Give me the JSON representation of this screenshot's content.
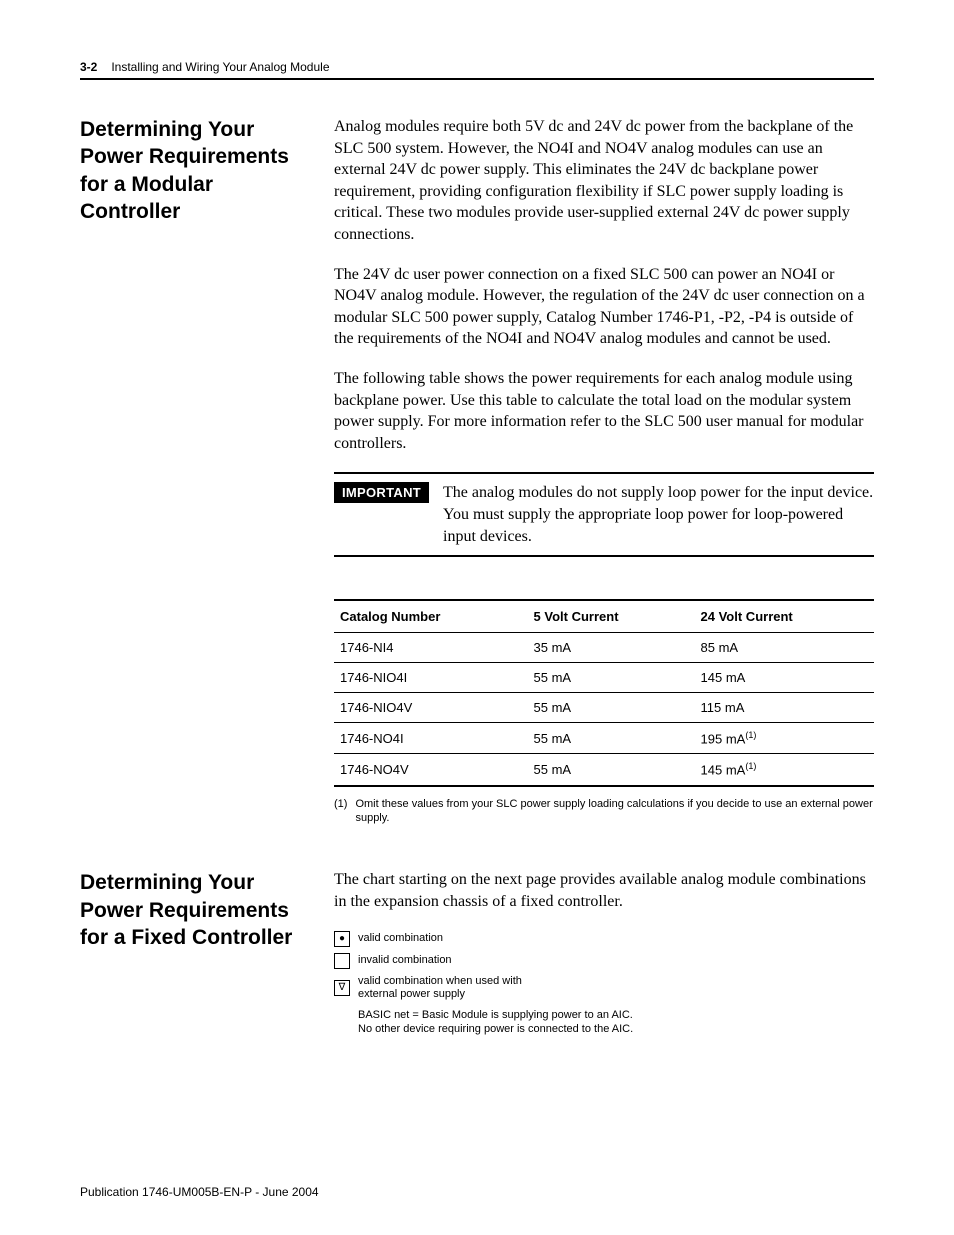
{
  "header": {
    "page_number": "3-2",
    "running_title": "Installing and Wiring Your Analog Module"
  },
  "section1": {
    "heading": "Determining Your Power Requirements for a Modular Controller",
    "para1": "Analog modules require both 5V dc and 24V dc power from the backplane of the SLC 500 system. However, the NO4I and NO4V analog modules can use an external 24V dc power supply. This eliminates the 24V dc backplane power requirement, providing configuration flexibility if SLC power supply loading is critical. These two modules provide user-supplied external 24V dc power supply connections.",
    "para2": "The 24V dc user power connection on a fixed SLC 500 can power an NO4I or NO4V analog module. However, the regulation of the 24V dc user connection on a modular SLC 500 power supply, Catalog Number 1746-P1, -P2, -P4 is outside of the requirements of the NO4I and NO4V analog modules and cannot be used.",
    "para3": "The following table shows the power requirements for each analog module using backplane power. Use this table to calculate the total load on the modular system power supply. For more information refer to the SLC 500 user manual for modular controllers.",
    "important_label": "IMPORTANT",
    "important_text": "The analog modules do not supply loop power for the input device. You must supply the appropriate loop power for loop-powered input devices."
  },
  "table": {
    "columns": [
      "Catalog Number",
      "5 Volt Current",
      "24 Volt Current"
    ],
    "rows": [
      {
        "catalog": "1746-NI4",
        "c5v": "35 mA",
        "c24v": "85 mA",
        "note24": false
      },
      {
        "catalog": "1746-NIO4I",
        "c5v": "55 mA",
        "c24v": "145 mA",
        "note24": false
      },
      {
        "catalog": "1746-NIO4V",
        "c5v": "55 mA",
        "c24v": "115 mA",
        "note24": false
      },
      {
        "catalog": "1746-NO4I",
        "c5v": "55 mA",
        "c24v": "195 mA",
        "note24": true
      },
      {
        "catalog": "1746-NO4V",
        "c5v": "55 mA",
        "c24v": "145 mA",
        "note24": true
      }
    ],
    "footnote_mark": "(1)",
    "footnote_text": "Omit these values from your SLC power supply loading calculations if you decide to use an external power supply."
  },
  "section2": {
    "heading": "Determining Your Power Requirements for a Fixed Controller",
    "para1": "The chart starting on the next page provides available analog module combinations in the expansion chassis of a fixed controller.",
    "legend": {
      "valid_symbol": "●",
      "valid_text": "valid combination",
      "invalid_text": "invalid combination",
      "ext_symbol": "∇",
      "ext_text": "valid combination when used with external power supply",
      "basic_note": "BASIC net = Basic Module is supplying power to an AIC. No other device requiring power is connected to the AIC."
    }
  },
  "footer": {
    "publication": "Publication 1746-UM005B-EN-P - June 2004"
  }
}
